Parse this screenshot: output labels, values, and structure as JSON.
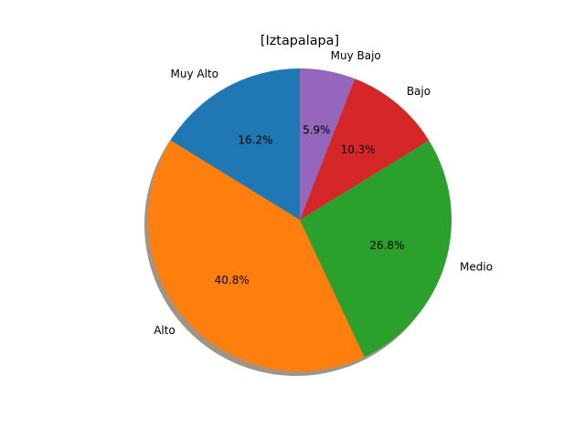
{
  "chart_data": {
    "type": "pie",
    "title": "[Iztapalapa]",
    "start_angle_deg": 90,
    "direction": "counterclockwise",
    "shadow": true,
    "slices": [
      {
        "label": "Muy Alto",
        "value": 16.2,
        "pct_label": "16.2%",
        "color": "#1f77b4"
      },
      {
        "label": "Alto",
        "value": 40.8,
        "pct_label": "40.8%",
        "color": "#ff7f0e"
      },
      {
        "label": "Medio",
        "value": 26.8,
        "pct_label": "26.8%",
        "color": "#2ca02c"
      },
      {
        "label": "Bajo",
        "value": 10.3,
        "pct_label": "10.3%",
        "color": "#d62728"
      },
      {
        "label": "Muy Bajo",
        "value": 5.9,
        "pct_label": "5.9%",
        "color": "#9467bd"
      }
    ]
  }
}
